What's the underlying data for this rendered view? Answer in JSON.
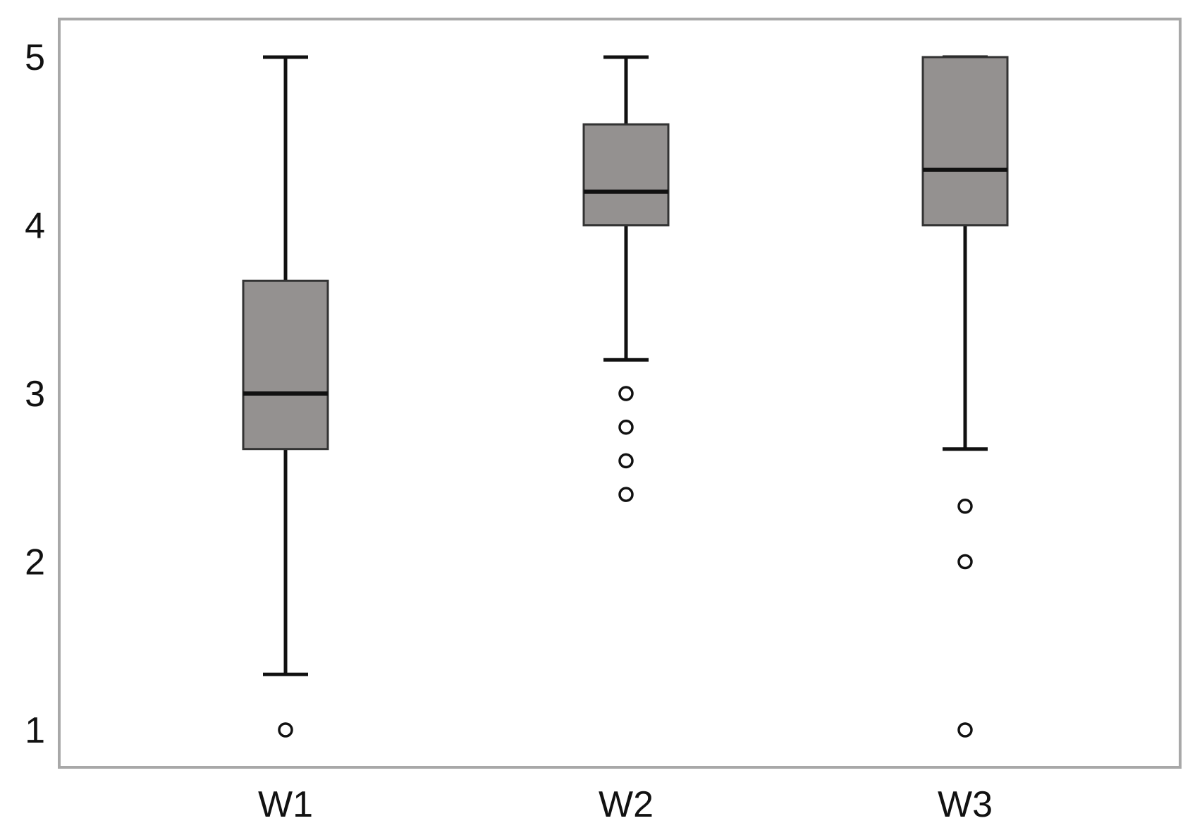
{
  "chart_data": {
    "type": "boxplot",
    "title": "",
    "xlabel": "",
    "ylabel": "",
    "ylim": [
      0.85,
      5.25
    ],
    "yticks": [
      1,
      2,
      3,
      4,
      5
    ],
    "ytick_labels": [
      "1",
      "2",
      "3",
      "4",
      "5"
    ],
    "categories": [
      "W1",
      "W2",
      "W3"
    ],
    "grid": false,
    "legend": "none",
    "colors": {
      "box_fill": "#949190",
      "box_stroke": "#333333",
      "whisker": "#111111",
      "median": "#111111",
      "frame": "#a8a8a8",
      "outlier": "#111111"
    },
    "boxes": [
      {
        "category": "W1",
        "whisker_low": 1.33,
        "q1": 2.67,
        "median": 3.0,
        "q3": 3.67,
        "whisker_high": 5.0,
        "outliers": [
          1.0
        ]
      },
      {
        "category": "W2",
        "whisker_low": 3.2,
        "q1": 4.0,
        "median": 4.2,
        "q3": 4.6,
        "whisker_high": 5.0,
        "outliers": [
          3.0,
          2.8,
          2.6,
          2.4
        ]
      },
      {
        "category": "W3",
        "whisker_low": 2.67,
        "q1": 4.0,
        "median": 4.33,
        "q3": 5.0,
        "whisker_high": 5.0,
        "outliers": [
          2.33,
          2.0,
          1.0
        ]
      }
    ]
  }
}
